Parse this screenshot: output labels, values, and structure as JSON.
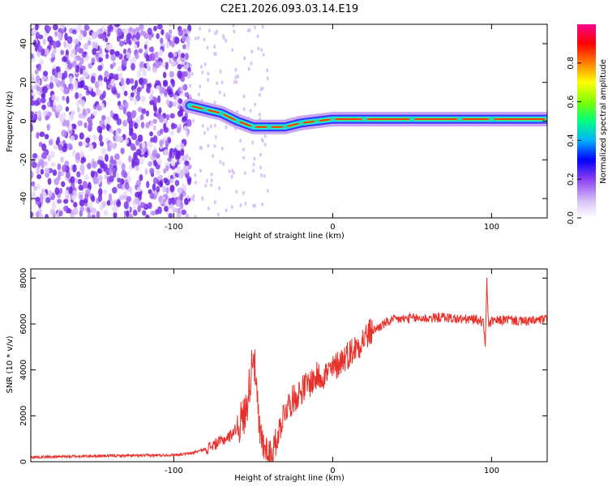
{
  "title": "C2E1.2026.093.03.14.E19",
  "colors": {
    "line": "#e8302a",
    "frame": "#000000",
    "points": "#7a2fe0"
  },
  "chart_data": [
    {
      "type": "heatmap",
      "name": "spectrogram",
      "xlabel": "Height of straight line (km)",
      "ylabel": "Frequency (Hz)",
      "xlim": [
        -190,
        135
      ],
      "ylim": [
        -50,
        50
      ],
      "xticks": [
        -100,
        0,
        100
      ],
      "yticks": [
        -40,
        -20,
        0,
        20,
        40
      ],
      "colorbar": {
        "label": "Normalized spectral amplitude",
        "range": [
          0,
          1
        ],
        "ticks": [
          0.0,
          0.2,
          0.4,
          0.6,
          0.8
        ],
        "tick_labels": [
          "0.0",
          "0.2",
          "0.4",
          "0.6",
          "0.8"
        ],
        "colormap": [
          "#ffffff",
          "#dcc8f8",
          "#8a3ff0",
          "#0000ff",
          "#00b0ff",
          "#00ff80",
          "#80ff00",
          "#ffff00",
          "#ff8000",
          "#ff0000",
          "#ff0090"
        ]
      },
      "ridge": [
        {
          "x": -90,
          "y": 8
        },
        {
          "x": -80,
          "y": 6
        },
        {
          "x": -70,
          "y": 4
        },
        {
          "x": -60,
          "y": 0
        },
        {
          "x": -50,
          "y": -3
        },
        {
          "x": -40,
          "y": -3
        },
        {
          "x": -30,
          "y": -3
        },
        {
          "x": -20,
          "y": -1
        },
        {
          "x": -10,
          "y": 0
        },
        {
          "x": 0,
          "y": 1
        },
        {
          "x": 20,
          "y": 1
        },
        {
          "x": 50,
          "y": 1
        },
        {
          "x": 80,
          "y": 1
        },
        {
          "x": 100,
          "y": 1
        },
        {
          "x": 135,
          "y": 1
        }
      ]
    },
    {
      "type": "line",
      "name": "snr",
      "xlabel": "Height of straight line (km)",
      "ylabel": "SNR (10 * v/v)",
      "xlim": [
        -190,
        135
      ],
      "ylim": [
        0,
        8400
      ],
      "xticks": [
        -100,
        0,
        100
      ],
      "yticks": [
        0,
        2000,
        4000,
        6000,
        8000
      ],
      "series": [
        {
          "name": "SNR",
          "x": [
            -190,
            -170,
            -150,
            -130,
            -110,
            -100,
            -90,
            -80,
            -70,
            -65,
            -60,
            -55,
            -52,
            -50,
            -48,
            -46,
            -44,
            -42,
            -40,
            -38,
            -36,
            -34,
            -32,
            -30,
            -25,
            -20,
            -15,
            -10,
            -5,
            0,
            5,
            10,
            15,
            20,
            25,
            30,
            35,
            40,
            50,
            60,
            70,
            80,
            90,
            95,
            96,
            97,
            98,
            100,
            110,
            120,
            135
          ],
          "y": [
            200,
            220,
            250,
            260,
            280,
            300,
            350,
            550,
            900,
            1100,
            1500,
            2100,
            3500,
            5000,
            3000,
            1200,
            800,
            500,
            300,
            400,
            800,
            1300,
            1800,
            2300,
            2700,
            3100,
            3400,
            3700,
            3800,
            4000,
            4400,
            4700,
            5000,
            5400,
            5700,
            5900,
            6100,
            6200,
            6250,
            6250,
            6300,
            6200,
            6200,
            6100,
            4800,
            8000,
            6000,
            6100,
            6200,
            6100,
            6200
          ]
        }
      ]
    }
  ]
}
